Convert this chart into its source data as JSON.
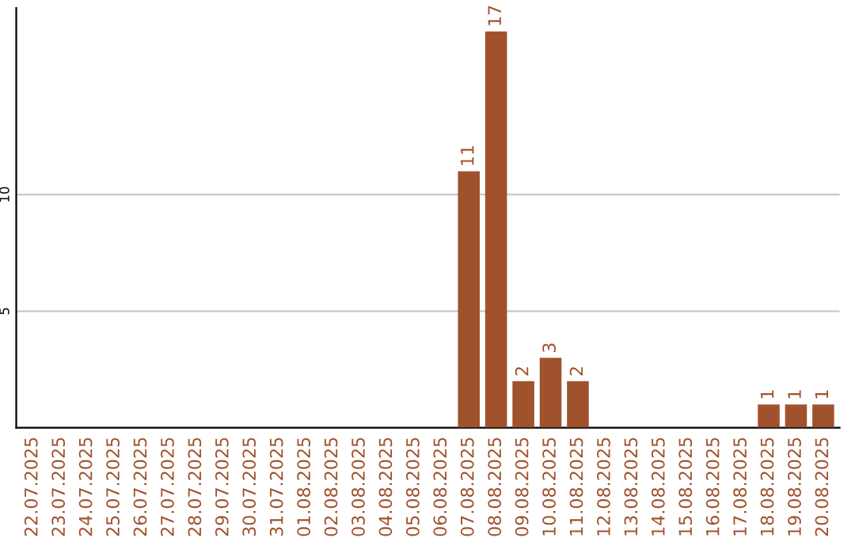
{
  "chart_data": {
    "type": "bar",
    "categories": [
      "22.07.2025",
      "23.07.2025",
      "24.07.2025",
      "25.07.2025",
      "26.07.2025",
      "27.07.2025",
      "28.07.2025",
      "29.07.2025",
      "30.07.2025",
      "31.07.2025",
      "01.08.2025",
      "02.08.2025",
      "03.08.2025",
      "04.08.2025",
      "05.08.2025",
      "06.08.2025",
      "07.08.2025",
      "08.08.2025",
      "09.08.2025",
      "10.08.2025",
      "11.08.2025",
      "12.08.2025",
      "13.08.2025",
      "14.08.2025",
      "15.08.2025",
      "16.08.2025",
      "17.08.2025",
      "18.08.2025",
      "19.08.2025",
      "20.08.2025"
    ],
    "values": [
      0,
      0,
      0,
      0,
      0,
      0,
      0,
      0,
      0,
      0,
      0,
      0,
      0,
      0,
      0,
      0,
      11,
      17,
      2,
      3,
      2,
      0,
      0,
      0,
      0,
      0,
      0,
      1,
      1,
      1
    ],
    "value_labels": [
      null,
      null,
      null,
      null,
      null,
      null,
      null,
      null,
      null,
      null,
      null,
      null,
      null,
      null,
      null,
      null,
      "11",
      "17",
      "2",
      "3",
      "2",
      null,
      null,
      null,
      null,
      null,
      null,
      "1",
      "1",
      "1"
    ],
    "color": "#a0522d",
    "ylim": [
      0,
      18
    ],
    "yticks": [
      5,
      10
    ],
    "grid": "y",
    "legend": false
  }
}
